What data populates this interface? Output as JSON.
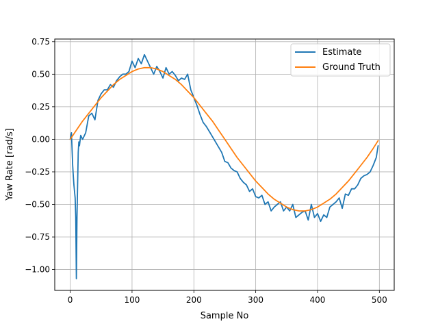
{
  "chart_data": {
    "type": "line",
    "title": "",
    "xlabel": "Sample No",
    "ylabel": "Yaw Rate [rad/s]",
    "xlim": [
      -25,
      524
    ],
    "ylim": [
      -1.16,
      0.77
    ],
    "grid": true,
    "legend_position": "top-right",
    "x_ticks": [
      0,
      100,
      200,
      300,
      400,
      500
    ],
    "y_ticks": [
      -1.0,
      -0.75,
      -0.5,
      -0.25,
      0.0,
      0.25,
      0.5,
      0.75
    ],
    "x_tick_labels": [
      "0",
      "100",
      "200",
      "300",
      "400",
      "500"
    ],
    "y_tick_labels": [
      "−1.00",
      "−0.75",
      "−0.50",
      "−0.25",
      "0.00",
      "0.25",
      "0.50",
      "0.75"
    ],
    "series": [
      {
        "name": "Estimate",
        "color": "#1f77b4",
        "x": [
          0,
          2,
          4,
          5,
          6,
          8,
          9,
          10,
          11,
          12,
          13,
          14,
          15,
          17,
          20,
          25,
          30,
          35,
          40,
          45,
          50,
          55,
          60,
          65,
          70,
          75,
          80,
          85,
          90,
          95,
          100,
          105,
          110,
          115,
          120,
          125,
          130,
          135,
          140,
          145,
          150,
          155,
          160,
          165,
          170,
          175,
          180,
          185,
          190,
          195,
          200,
          205,
          210,
          215,
          220,
          225,
          230,
          235,
          240,
          245,
          250,
          255,
          260,
          265,
          270,
          275,
          280,
          285,
          290,
          295,
          300,
          305,
          310,
          315,
          320,
          325,
          330,
          335,
          340,
          345,
          350,
          355,
          360,
          365,
          370,
          375,
          380,
          385,
          390,
          395,
          400,
          405,
          410,
          415,
          420,
          425,
          430,
          435,
          440,
          445,
          450,
          455,
          460,
          465,
          470,
          475,
          480,
          485,
          490,
          495,
          498
        ],
        "y": [
          0.0,
          0.05,
          -0.2,
          -0.28,
          -0.35,
          -0.45,
          -0.6,
          -1.07,
          -0.6,
          -0.35,
          -0.1,
          -0.02,
          -0.05,
          0.03,
          0.0,
          0.05,
          0.18,
          0.2,
          0.15,
          0.3,
          0.35,
          0.38,
          0.38,
          0.42,
          0.4,
          0.45,
          0.48,
          0.5,
          0.5,
          0.52,
          0.6,
          0.55,
          0.62,
          0.58,
          0.65,
          0.6,
          0.55,
          0.5,
          0.56,
          0.52,
          0.47,
          0.55,
          0.5,
          0.52,
          0.49,
          0.45,
          0.47,
          0.46,
          0.5,
          0.38,
          0.32,
          0.26,
          0.19,
          0.13,
          0.1,
          0.06,
          0.02,
          -0.02,
          -0.06,
          -0.1,
          -0.17,
          -0.18,
          -0.22,
          -0.24,
          -0.25,
          -0.3,
          -0.33,
          -0.35,
          -0.4,
          -0.38,
          -0.44,
          -0.45,
          -0.43,
          -0.5,
          -0.48,
          -0.55,
          -0.52,
          -0.5,
          -0.48,
          -0.55,
          -0.52,
          -0.55,
          -0.5,
          -0.6,
          -0.58,
          -0.56,
          -0.55,
          -0.62,
          -0.5,
          -0.6,
          -0.57,
          -0.63,
          -0.58,
          -0.6,
          -0.52,
          -0.5,
          -0.48,
          -0.45,
          -0.53,
          -0.42,
          -0.43,
          -0.38,
          -0.38,
          -0.35,
          -0.3,
          -0.28,
          -0.27,
          -0.25,
          -0.2,
          -0.14,
          -0.05
        ]
      },
      {
        "name": "Ground Truth",
        "color": "#ff7f0e",
        "x": [
          0,
          10,
          20,
          30,
          40,
          50,
          60,
          70,
          80,
          90,
          100,
          110,
          120,
          130,
          140,
          150,
          160,
          170,
          180,
          190,
          200,
          210,
          220,
          230,
          240,
          250,
          260,
          270,
          280,
          290,
          300,
          310,
          320,
          330,
          340,
          350,
          360,
          370,
          380,
          390,
          400,
          410,
          420,
          430,
          440,
          450,
          460,
          470,
          480,
          490,
          498
        ],
        "y": [
          0.0,
          0.07,
          0.14,
          0.2,
          0.26,
          0.32,
          0.37,
          0.42,
          0.46,
          0.49,
          0.52,
          0.54,
          0.55,
          0.55,
          0.54,
          0.52,
          0.49,
          0.46,
          0.42,
          0.37,
          0.32,
          0.26,
          0.2,
          0.14,
          0.07,
          0.0,
          -0.07,
          -0.14,
          -0.2,
          -0.26,
          -0.32,
          -0.37,
          -0.42,
          -0.46,
          -0.49,
          -0.52,
          -0.54,
          -0.55,
          -0.55,
          -0.54,
          -0.52,
          -0.49,
          -0.46,
          -0.42,
          -0.37,
          -0.32,
          -0.26,
          -0.2,
          -0.14,
          -0.07,
          -0.01
        ]
      }
    ]
  }
}
